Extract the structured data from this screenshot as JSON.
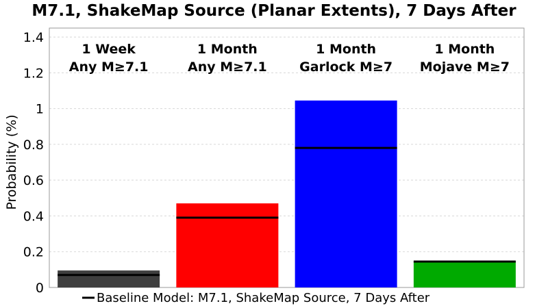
{
  "chart_data": {
    "type": "bar",
    "title": "M7.1, ShakeMap Source (Planar Extents), 7 Days After",
    "ylabel": "Probability (%)",
    "xlabel": "",
    "ylim": [
      0,
      1.45
    ],
    "yticks": [
      "0",
      "0.2",
      "0.4",
      "0.6",
      "0.8",
      "1",
      "1.2",
      "1.4"
    ],
    "grid": true,
    "categories": [
      [
        "1 Week",
        "Any M≥7.1"
      ],
      [
        "1 Month",
        "Any M≥7.1"
      ],
      [
        "1 Month",
        "Garlock M≥7"
      ],
      [
        "1 Month",
        "Mojave M≥7"
      ]
    ],
    "values": [
      0.095,
      0.47,
      1.045,
      0.145
    ],
    "colors": [
      "#3f3f3f",
      "#ff0000",
      "#0000ff",
      "#00aa00"
    ],
    "baseline": {
      "name": "Baseline Model: M7.1, ShakeMap Source, 7 Days After",
      "values": [
        0.07,
        0.39,
        0.78,
        0.145
      ],
      "color": "#000000"
    },
    "legend_position": "bottom"
  }
}
